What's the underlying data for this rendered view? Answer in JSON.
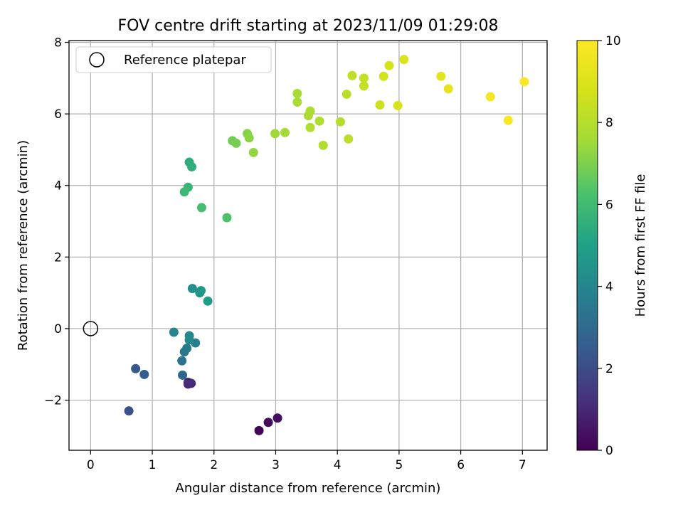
{
  "chart_data": {
    "type": "scatter",
    "title": "FOV centre drift starting at 2023/11/09 01:29:08",
    "xlabel": "Angular distance from reference (arcmin)",
    "ylabel": "Rotation from reference (arcmin)",
    "xlim": [
      -0.35,
      7.4
    ],
    "ylim": [
      -3.4,
      8.05
    ],
    "xticks": [
      0,
      1,
      2,
      3,
      4,
      5,
      6,
      7
    ],
    "yticks": [
      -2,
      0,
      2,
      4,
      6,
      8
    ],
    "xtick_labels": [
      "0",
      "1",
      "2",
      "3",
      "4",
      "5",
      "6",
      "7"
    ],
    "ytick_labels": [
      "−2",
      "0",
      "2",
      "4",
      "6",
      "8"
    ],
    "grid": true,
    "legend": {
      "label": "Reference platepar",
      "position": "top-left"
    },
    "reference_point": {
      "x": 0,
      "y": 0
    },
    "colorbar": {
      "label": "Hours from first FF file",
      "min": 0,
      "max": 10,
      "ticks": [
        0,
        2,
        4,
        6,
        8,
        10
      ],
      "tick_labels": [
        "0",
        "2",
        "4",
        "6",
        "8",
        "10"
      ],
      "colormap": "viridis"
    },
    "points": [
      {
        "x": 2.73,
        "y": -2.85,
        "hours": 0.1
      },
      {
        "x": 2.88,
        "y": -2.62,
        "hours": 0.2
      },
      {
        "x": 3.03,
        "y": -2.5,
        "hours": 0.3
      },
      {
        "x": 1.58,
        "y": -1.55,
        "hours": 1.0
      },
      {
        "x": 1.63,
        "y": -1.53,
        "hours": 1.05
      },
      {
        "x": 1.58,
        "y": -1.5,
        "hours": 1.1
      },
      {
        "x": 0.62,
        "y": -2.3,
        "hours": 2.2
      },
      {
        "x": 0.73,
        "y": -1.12,
        "hours": 2.4
      },
      {
        "x": 0.87,
        "y": -1.28,
        "hours": 2.5
      },
      {
        "x": 1.49,
        "y": -1.3,
        "hours": 2.9
      },
      {
        "x": 1.48,
        "y": -0.9,
        "hours": 3.3
      },
      {
        "x": 1.52,
        "y": -0.65,
        "hours": 3.4
      },
      {
        "x": 1.56,
        "y": -0.55,
        "hours": 3.5
      },
      {
        "x": 1.7,
        "y": -0.4,
        "hours": 3.7
      },
      {
        "x": 1.35,
        "y": -0.1,
        "hours": 4.0
      },
      {
        "x": 1.6,
        "y": -0.2,
        "hours": 4.1
      },
      {
        "x": 1.6,
        "y": -0.32,
        "hours": 4.2
      },
      {
        "x": 1.65,
        "y": 1.12,
        "hours": 4.3
      },
      {
        "x": 1.77,
        "y": 1.0,
        "hours": 4.5
      },
      {
        "x": 1.79,
        "y": 1.06,
        "hours": 4.7
      },
      {
        "x": 1.9,
        "y": 0.77,
        "hours": 4.9
      },
      {
        "x": 1.6,
        "y": 4.65,
        "hours": 5.4
      },
      {
        "x": 1.64,
        "y": 4.52,
        "hours": 5.5
      },
      {
        "x": 1.58,
        "y": 3.95,
        "hours": 5.8
      },
      {
        "x": 1.52,
        "y": 3.82,
        "hours": 5.9
      },
      {
        "x": 1.8,
        "y": 3.38,
        "hours": 6.1
      },
      {
        "x": 2.21,
        "y": 3.1,
        "hours": 6.3
      },
      {
        "x": 2.3,
        "y": 5.25,
        "hours": 6.8
      },
      {
        "x": 2.36,
        "y": 5.18,
        "hours": 6.9
      },
      {
        "x": 2.54,
        "y": 5.45,
        "hours": 7.1
      },
      {
        "x": 2.57,
        "y": 5.33,
        "hours": 7.2
      },
      {
        "x": 2.64,
        "y": 4.92,
        "hours": 7.3
      },
      {
        "x": 2.99,
        "y": 5.45,
        "hours": 7.5
      },
      {
        "x": 3.15,
        "y": 5.48,
        "hours": 7.6
      },
      {
        "x": 3.35,
        "y": 6.57,
        "hours": 7.7
      },
      {
        "x": 3.35,
        "y": 6.33,
        "hours": 7.7
      },
      {
        "x": 3.53,
        "y": 5.95,
        "hours": 7.8
      },
      {
        "x": 3.56,
        "y": 6.08,
        "hours": 7.8
      },
      {
        "x": 3.56,
        "y": 5.62,
        "hours": 7.9
      },
      {
        "x": 3.71,
        "y": 5.8,
        "hours": 7.9
      },
      {
        "x": 3.77,
        "y": 5.12,
        "hours": 7.9
      },
      {
        "x": 4.05,
        "y": 5.78,
        "hours": 8.0
      },
      {
        "x": 4.15,
        "y": 6.55,
        "hours": 8.1
      },
      {
        "x": 4.18,
        "y": 5.3,
        "hours": 8.2
      },
      {
        "x": 4.24,
        "y": 7.07,
        "hours": 8.3
      },
      {
        "x": 4.43,
        "y": 7.0,
        "hours": 8.4
      },
      {
        "x": 4.43,
        "y": 6.78,
        "hours": 8.4
      },
      {
        "x": 4.69,
        "y": 6.25,
        "hours": 8.6
      },
      {
        "x": 4.75,
        "y": 7.05,
        "hours": 8.7
      },
      {
        "x": 4.84,
        "y": 7.35,
        "hours": 8.8
      },
      {
        "x": 4.98,
        "y": 6.23,
        "hours": 8.9
      },
      {
        "x": 5.08,
        "y": 7.52,
        "hours": 9.0
      },
      {
        "x": 5.68,
        "y": 7.05,
        "hours": 9.2
      },
      {
        "x": 5.8,
        "y": 6.7,
        "hours": 9.3
      },
      {
        "x": 6.48,
        "y": 6.48,
        "hours": 9.8
      },
      {
        "x": 6.77,
        "y": 5.82,
        "hours": 9.9
      },
      {
        "x": 7.03,
        "y": 6.9,
        "hours": 9.95
      }
    ]
  }
}
